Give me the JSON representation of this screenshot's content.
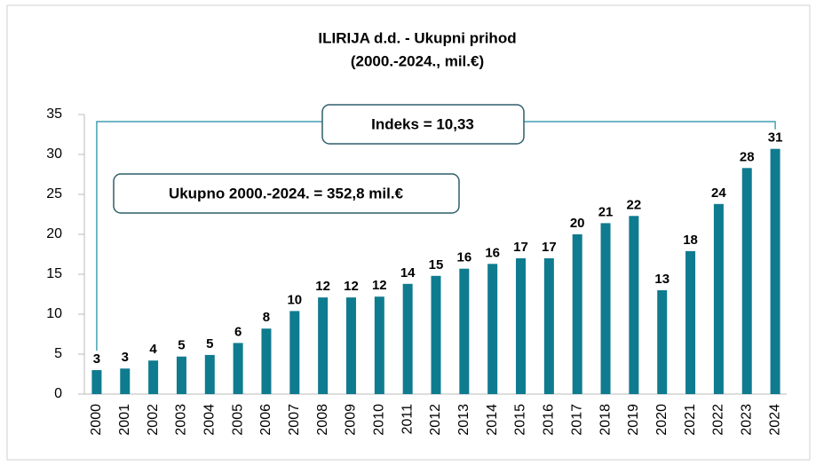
{
  "chart_data": {
    "type": "bar",
    "title": "ILIRIJA d.d. - Ukupni prihod",
    "subtitle": "(2000.-2024., mil.€)",
    "annotations": [
      "Indeks = 10,33",
      "Ukupno 2000.-2024. = 352,8 mil.€"
    ],
    "categories": [
      "2000",
      "2001",
      "2002",
      "2003",
      "2004",
      "2005",
      "2006",
      "2007",
      "2008",
      "2009",
      "2010",
      "2011",
      "2012",
      "2013",
      "2014",
      "2015",
      "2016",
      "2017",
      "2018",
      "2019",
      "2020",
      "2021",
      "2022",
      "2023",
      "2024"
    ],
    "values": [
      3.0,
      3.2,
      4.2,
      4.7,
      4.9,
      6.4,
      8.2,
      10.4,
      12.1,
      12.1,
      12.2,
      13.8,
      14.8,
      15.7,
      16.3,
      17.0,
      17.0,
      20.0,
      21.4,
      22.3,
      13.0,
      17.9,
      23.8,
      28.3,
      30.7
    ],
    "value_labels": [
      "3",
      "3",
      "4",
      "5",
      "5",
      "6",
      "8",
      "10",
      "12",
      "12",
      "12",
      "14",
      "15",
      "16",
      "16",
      "17",
      "17",
      "20",
      "21",
      "22",
      "13",
      "18",
      "24",
      "28",
      "31"
    ],
    "color": "#0f7b8f",
    "ylim": [
      0,
      35
    ],
    "yticks": [
      0,
      5,
      10,
      15,
      20,
      25,
      30,
      35
    ],
    "grid": false
  }
}
